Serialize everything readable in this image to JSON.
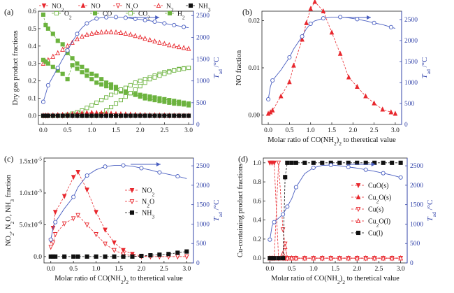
{
  "colors": {
    "red": "#e8282e",
    "blue": "#1f2f8f",
    "line_blue": "#4a5fc1",
    "green": "#6cb33f",
    "black": "#111111",
    "axis_right": "#3344aa"
  },
  "chart_data": [
    {
      "panel": "(a)",
      "type": "line",
      "xlabel": "",
      "ylabel": "Dry gas product fractions",
      "y2label_main": "T",
      "y2label_sub": "ad",
      "y2label_unit": " /°C",
      "xlim": [
        -0.1,
        3.1
      ],
      "ylim": [
        -0.05,
        0.6
      ],
      "y2lim": [
        0,
        2600
      ],
      "x_ticks": [
        "0.0",
        "0.5",
        "1.0",
        "1.5",
        "2.0",
        "2.5",
        "3.0"
      ],
      "y_ticks": [
        "0.0",
        "0.1",
        "0.2",
        "0.3",
        "0.4",
        "0.5",
        "0.6"
      ],
      "y2_ticks": [
        "0",
        "500",
        "1000",
        "1500",
        "2000",
        "2500"
      ],
      "legend": [
        "NO2",
        "NO",
        "N2O",
        "N2",
        "NH3",
        "O2",
        "CO",
        "CO2",
        "H2"
      ],
      "x": [
        0,
        0.05,
        0.1,
        0.2,
        0.3,
        0.4,
        0.5,
        0.6,
        0.7,
        0.8,
        0.9,
        1.0,
        1.1,
        1.2,
        1.3,
        1.4,
        1.5,
        1.6,
        1.7,
        1.8,
        1.9,
        2.0,
        2.1,
        2.2,
        2.3,
        2.4,
        2.5,
        2.6,
        2.7,
        2.8,
        2.9,
        3.0
      ],
      "series": [
        {
          "name": "N2",
          "style": "red-open-up-dashed",
          "values": [
            0.3,
            0.31,
            0.32,
            0.34,
            0.36,
            0.38,
            0.4,
            0.42,
            0.44,
            0.455,
            0.465,
            0.472,
            0.477,
            0.479,
            0.48,
            0.48,
            0.479,
            0.476,
            0.472,
            0.466,
            0.459,
            0.451,
            0.443,
            0.435,
            0.427,
            0.42,
            0.413,
            0.406,
            0.4,
            0.395,
            0.39,
            0.385
          ]
        },
        {
          "name": "H2",
          "style": "green-filled-dashed",
          "values": [
            0.58,
            0.52,
            0.5,
            0.47,
            0.43,
            0.41,
            0.36,
            0.33,
            0.3,
            0.28,
            0.26,
            0.24,
            0.23,
            0.21,
            0.19,
            0.18,
            0.165,
            0.15,
            0.14,
            0.13,
            0.12,
            0.11,
            0.1,
            0.095,
            0.09,
            0.085,
            0.08,
            0.075,
            0.07,
            0.068,
            0.065,
            0.06
          ]
        },
        {
          "name": "CO",
          "style": "green-half-dashed",
          "values": [
            0.32,
            0.31,
            0.3,
            0.28,
            0.26,
            0.24,
            0.21,
            0.29,
            0.27,
            0.25,
            0.23,
            0.21,
            0.19,
            0.18,
            0.17,
            0.16,
            0.15,
            0.14,
            0.135,
            0.13,
            0.125,
            0.12,
            0.115,
            0.11,
            0.105,
            0.1,
            0.095,
            0.09,
            0.085,
            0.08,
            0.075,
            0.07
          ]
        },
        {
          "name": "CO2",
          "style": "green-open-dashed",
          "values": [
            0.0,
            0.0,
            0.0,
            0.0,
            0.0,
            0.0,
            0.005,
            0.012,
            0.02,
            0.03,
            0.045,
            0.06,
            0.075,
            0.09,
            0.105,
            0.12,
            0.135,
            0.15,
            0.16,
            0.175,
            0.19,
            0.2,
            0.21,
            0.22,
            0.23,
            0.24,
            0.25,
            0.255,
            0.262,
            0.268,
            0.272,
            0.275
          ]
        },
        {
          "name": "O2",
          "style": "green-open-dashed2",
          "values": [
            0.0,
            0.0,
            0.0,
            0.0,
            0.0,
            0.0,
            0.0,
            0.0,
            0.0,
            0.0,
            0.0,
            0.0,
            0.0,
            0.01,
            0.03,
            0.05,
            0.07,
            0.09,
            0.11,
            0.13,
            0.15,
            0.17,
            0.19,
            0.21,
            0.22,
            0.23,
            0.24,
            0.25,
            0.26,
            0.265,
            0.27,
            0.275
          ]
        },
        {
          "name": "NO",
          "style": "red-filled-up-dashed",
          "values": [
            0.002,
            0.002,
            0.003,
            0.004,
            0.005,
            0.006,
            0.008,
            0.01,
            0.012,
            0.015,
            0.017,
            0.018,
            0.017,
            0.016,
            0.014,
            0.013,
            0.011,
            0.01,
            0.009,
            0.008,
            0.007,
            0.006,
            0.005,
            0.004,
            0.004,
            0.003,
            0.003,
            0.002,
            0.002,
            0.002,
            0.001,
            0.001
          ]
        },
        {
          "name": "NO2",
          "style": "red-filled-down-dashed",
          "values": [
            0.0,
            0.0,
            0.0,
            0.0,
            0.0,
            0.0,
            0.0,
            0.0,
            0.0,
            0.0,
            0.0,
            0.0,
            0.0,
            0.0,
            0.0,
            0.0,
            0.0,
            0.0,
            0.0,
            0.0,
            0.0,
            0.0,
            0.0,
            0.0,
            0.0,
            0.0,
            0.0,
            0.0,
            0.0,
            0.0,
            0.0,
            0.0
          ]
        },
        {
          "name": "NH3",
          "style": "black-square-dashed",
          "values": [
            0.0,
            0.0,
            0.0,
            0.0,
            0.0,
            0.0,
            0.0,
            0.0,
            0.0,
            0.0,
            0.0,
            0.0,
            0.0,
            0.0,
            0.0,
            0.0,
            0.0,
            0.0,
            0.0,
            0.0,
            0.0,
            0.0,
            0.0,
            0.0,
            0.0,
            0.0,
            0.0,
            0.0,
            0.0,
            0.0,
            0.0,
            0.0
          ]
        },
        {
          "name": "Tad",
          "axis": "right",
          "style": "blue-open-circle-solid",
          "values": [
            520,
            700,
            900,
            1100,
            1300,
            1500,
            1700,
            1900,
            2080,
            2220,
            2320,
            2390,
            2430,
            2450,
            2460,
            2465,
            2465,
            2460,
            2450,
            2440,
            2425,
            2410,
            2395,
            2380,
            2360,
            2340,
            2320,
            2300,
            2280,
            2260,
            2240,
            2220
          ]
        }
      ]
    },
    {
      "panel": "(b)",
      "type": "line",
      "xlabel": "Molar ratio of CO(NH2)2 to theretical value",
      "ylabel": "NO fraction",
      "y2label_main": "T",
      "y2label_sub": "ad",
      "y2label_unit": " /°C",
      "xlim": [
        -0.15,
        3.15
      ],
      "ylim": [
        -0.002,
        0.022
      ],
      "y2lim": [
        0,
        2700
      ],
      "x_ticks": [
        "0.0",
        "0.5",
        "1.0",
        "1.5",
        "2.0",
        "2.5",
        "3.0"
      ],
      "y_ticks": [
        "0.00",
        "0.01",
        "0.02"
      ],
      "y2_ticks": [
        "0",
        "500",
        "1000",
        "1500",
        "2000",
        "2500"
      ],
      "x": [
        0.0,
        0.05,
        0.1,
        0.3,
        0.5,
        0.6,
        0.8,
        0.9,
        1.0,
        1.1,
        1.3,
        1.5,
        1.7,
        1.9,
        2.1,
        2.3,
        2.5,
        2.7,
        2.9,
        3.0
      ],
      "series": [
        {
          "name": "NO",
          "style": "red-filled-up-dashed",
          "values": [
            0.0003,
            0.0006,
            0.001,
            0.004,
            0.007,
            0.0105,
            0.016,
            0.0195,
            0.0225,
            0.024,
            0.022,
            0.0175,
            0.013,
            0.008,
            0.006,
            0.004,
            0.0025,
            0.0012,
            0.0006,
            0.0003
          ]
        },
        {
          "name": "Tad",
          "axis": "right",
          "style": "blue-open-circle-solid",
          "values": [
            600,
            900,
            1050,
            1300,
            1600,
            1800,
            2100,
            2280,
            2400,
            2470,
            2530,
            2560,
            2560,
            2540,
            2510,
            2470,
            2420,
            2380,
            2320,
            2290
          ]
        }
      ]
    },
    {
      "panel": "(c)",
      "type": "line",
      "xlabel": "Molar ratio of CO(NH2)2 to theretical value",
      "ylabel": "NO2, N2O, NH3 fraction",
      "y2label_main": "T",
      "y2label_sub": "ad",
      "y2label_unit": " /°C",
      "xlim": [
        -0.15,
        3.15
      ],
      "ylim": [
        -1e-06,
        1.55e-05
      ],
      "y2lim": [
        0,
        2700
      ],
      "x_ticks": [
        "0.0",
        "0.5",
        "1.0",
        "1.5",
        "2.0",
        "2.5",
        "3.0"
      ],
      "y_ticks": [
        "0.0",
        "5.0x10-6",
        "1.0x10-5",
        "1.5x10-5"
      ],
      "y2_ticks": [
        "0",
        "500",
        "1000",
        "1500",
        "2000",
        "2500"
      ],
      "legend": [
        "NO2",
        "N2O",
        "NH3"
      ],
      "x": [
        0.0,
        0.05,
        0.1,
        0.3,
        0.5,
        0.6,
        0.8,
        1.0,
        1.2,
        1.4,
        1.6,
        1.8,
        2.0,
        2.2,
        2.4,
        2.6,
        2.8,
        3.0
      ],
      "series": [
        {
          "name": "NO2",
          "style": "red-filled-down-dashed",
          "values": [
            2.5e-06,
            4.5e-06,
            7e-06,
            9.5e-06,
            1.25e-05,
            1.33e-05,
            1.05e-05,
            7e-06,
            4.2e-06,
            2.2e-06,
            1e-06,
            4e-07,
            1e-07,
            0.0,
            0.0,
            0.0,
            0.0,
            0.0
          ]
        },
        {
          "name": "N2O",
          "style": "red-open-down-dashed",
          "values": [
            1.5e-06,
            2.2e-06,
            3.5e-06,
            5.2e-06,
            6e-06,
            6.5e-06,
            5e-06,
            3.5e-06,
            2e-06,
            1e-06,
            4e-07,
            1e-07,
            0.0,
            0.0,
            0.0,
            0.0,
            0.0,
            0.0
          ]
        },
        {
          "name": "NH3",
          "style": "black-square-dashed",
          "values": [
            0.0,
            0.0,
            0.0,
            0.0,
            0.0,
            0.0,
            0.0,
            0.0,
            0.0,
            0.0,
            0.0,
            0.0,
            1e-07,
            2e-07,
            3e-07,
            4e-07,
            6e-07,
            8e-07
          ]
        },
        {
          "name": "Tad",
          "axis": "right",
          "style": "blue-open-circle-solid",
          "values": [
            600,
            900,
            1050,
            1400,
            1700,
            1950,
            2250,
            2400,
            2480,
            2510,
            2510,
            2490,
            2440,
            2390,
            2330,
            2280,
            2230,
            2170
          ]
        }
      ]
    },
    {
      "panel": "(d)",
      "type": "line",
      "xlabel": "Molar ratio of CO(NH2)2 to theretical value",
      "ylabel": "Cu-containing product fractions",
      "y2label_main": "T",
      "y2label_sub": "ad",
      "y2label_unit": " /°C",
      "xlim": [
        -0.15,
        3.15
      ],
      "ylim": [
        -0.05,
        1.05
      ],
      "y2lim": [
        0,
        2700
      ],
      "x_ticks": [
        "0.0",
        "0.5",
        "1.0",
        "1.5",
        "2.0",
        "2.5",
        "3.0"
      ],
      "y_ticks": [
        "0.0",
        "0.2",
        "0.4",
        "0.6",
        "0.8",
        "1.0"
      ],
      "y2_ticks": [
        "0",
        "500",
        "1000",
        "1500",
        "2000",
        "2500"
      ],
      "legend": [
        "CuO(s)",
        "Cu2O(s)",
        "Cu(s)",
        "Cu2O(l)",
        "Cu(l)"
      ],
      "x": [
        0.0,
        0.05,
        0.1,
        0.2,
        0.3,
        0.35,
        0.4,
        0.5,
        0.6,
        0.8,
        1.0,
        1.2,
        1.4,
        1.6,
        1.8,
        2.0,
        2.2,
        2.4,
        2.6,
        2.8,
        3.0
      ],
      "series": [
        {
          "name": "CuO(s)",
          "style": "red-filled-down-dashed",
          "values": [
            1.0,
            1.0,
            1.0,
            0.0,
            0.0,
            0.0,
            0.0,
            0.0,
            0.0,
            0.0,
            0.0,
            0.0,
            0.0,
            0.0,
            0.0,
            0.0,
            0.0,
            0.0,
            0.0,
            0.0,
            0.0
          ]
        },
        {
          "name": "Cu2O(s)",
          "style": "red-filled-up-dashed",
          "values": [
            0.0,
            0.0,
            0.0,
            0.0,
            0.0,
            0.0,
            0.0,
            0.0,
            0.0,
            0.0,
            0.0,
            0.0,
            0.0,
            0.0,
            0.0,
            0.0,
            0.0,
            0.0,
            0.0,
            0.0,
            0.0
          ]
        },
        {
          "name": "Cu(s)",
          "style": "red-open-down-dashed",
          "values": [
            0.0,
            0.0,
            0.0,
            1.0,
            0.3,
            0.15,
            0.0,
            0.0,
            0.0,
            0.0,
            0.0,
            0.0,
            0.0,
            0.0,
            0.0,
            0.0,
            0.0,
            0.0,
            0.0,
            0.0,
            0.0
          ]
        },
        {
          "name": "Cu2O(l)",
          "style": "red-open-up-dashed",
          "values": [
            0.0,
            0.0,
            0.0,
            0.0,
            0.05,
            0.12,
            0.0,
            0.0,
            0.0,
            0.0,
            0.0,
            0.0,
            0.0,
            0.0,
            0.0,
            0.0,
            0.0,
            0.0,
            0.0,
            0.0,
            0.0
          ]
        },
        {
          "name": "Cu(l)",
          "style": "black-square-dashed",
          "values": [
            0.0,
            0.0,
            0.0,
            0.0,
            0.0,
            0.85,
            1.0,
            1.0,
            1.0,
            1.0,
            1.0,
            1.0,
            1.0,
            1.0,
            1.0,
            1.0,
            1.0,
            1.0,
            1.0,
            1.0,
            1.0
          ]
        },
        {
          "name": "Tad",
          "axis": "right",
          "style": "blue-open-circle-solid",
          "values": [
            600,
            950,
            1050,
            1150,
            1250,
            1350,
            1450,
            1650,
            1950,
            2300,
            2450,
            2510,
            2520,
            2500,
            2470,
            2440,
            2400,
            2360,
            2310,
            2260,
            2200
          ]
        }
      ]
    }
  ]
}
